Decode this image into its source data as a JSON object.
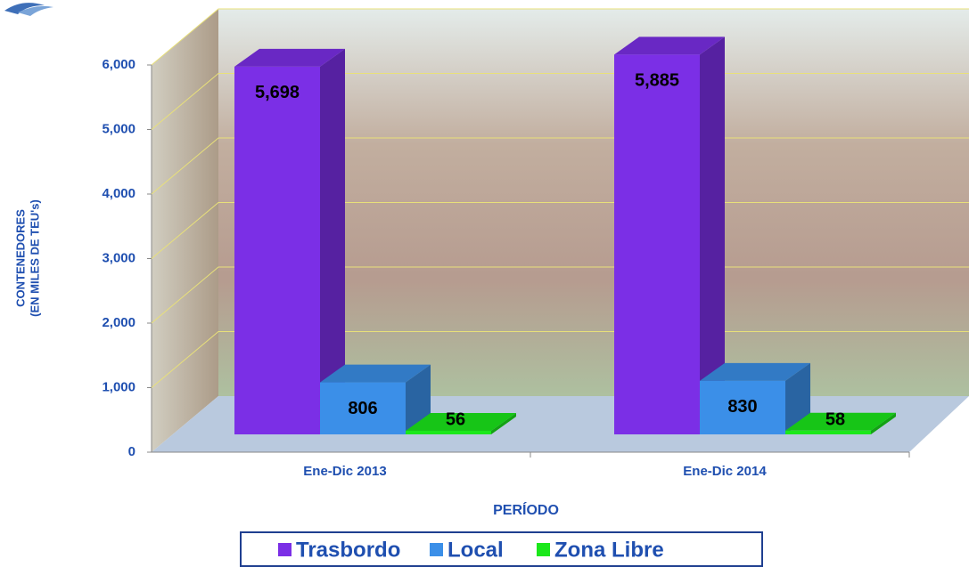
{
  "chart_data": {
    "type": "bar3d",
    "categories": [
      "Ene-Dic 2013",
      "Ene-Dic 2014"
    ],
    "series": [
      {
        "name": "Trasbordo",
        "color": "#7b2fe6",
        "values": [
          5698,
          5885
        ],
        "value_labels": [
          "5,698",
          "5,885"
        ]
      },
      {
        "name": "Local",
        "color": "#3b8fe8",
        "values": [
          806,
          830
        ]
      },
      {
        "name": "Zona Libre",
        "color": "#1be81b",
        "values": [
          56,
          58
        ]
      }
    ],
    "y_label": [
      "CONTENEDORES",
      "(EN MILES DE TEU's)"
    ],
    "x_label": "PERÍODO",
    "ylim": [
      0,
      6000
    ],
    "yticks": [
      0,
      {
        "value": 1000,
        "label": "1,000"
      },
      {
        "value": 2000,
        "label": "2,000"
      },
      {
        "value": 3000,
        "label": "3,000"
      },
      {
        "value": 4000,
        "label": "4,000"
      },
      {
        "value": 5000,
        "label": "5,000"
      },
      {
        "value": 6000,
        "label": "6,000"
      }
    ],
    "grid": true,
    "legend": "bottom"
  }
}
